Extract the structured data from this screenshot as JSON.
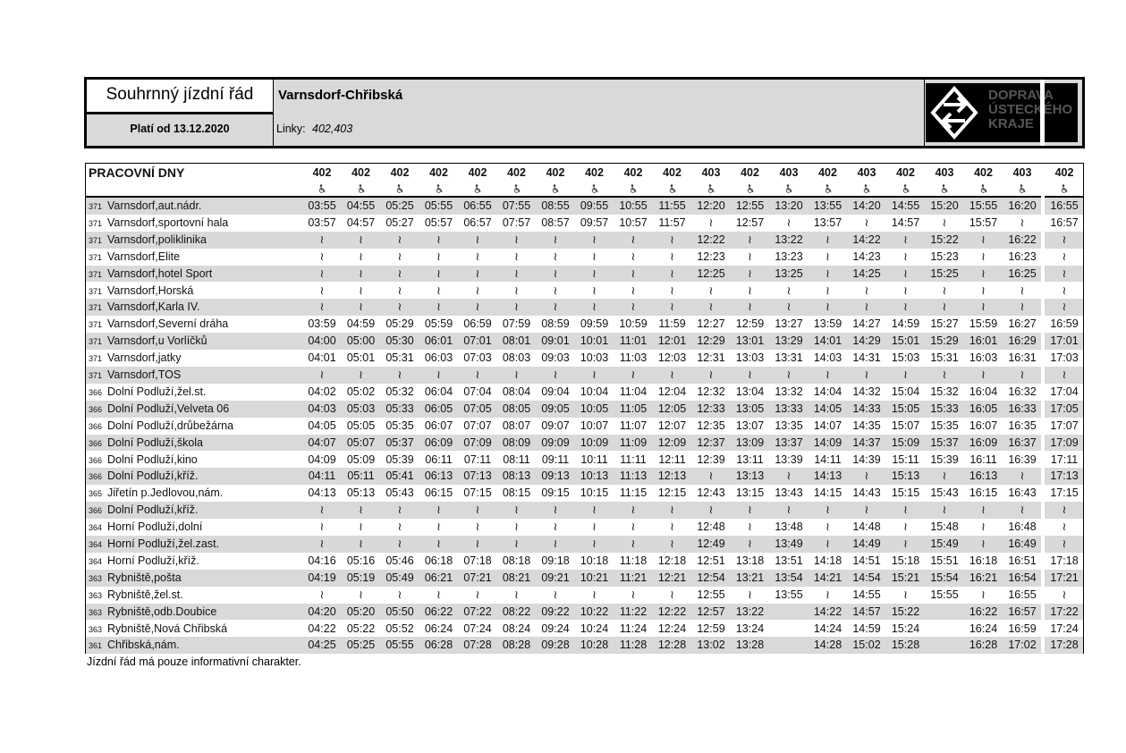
{
  "header": {
    "title": "Souhrnný jízdní řád",
    "valid_from": "Platí od 13.12.2020",
    "route": "Varnsdorf-Chřibská",
    "lines_label": "Linky:",
    "lines": "402,403",
    "logo": [
      "DOPRAVA",
      "ÚSTECKÉHO",
      "KRAJE"
    ]
  },
  "table": {
    "day_type": "PRACOVNÍ DNY",
    "trips": [
      "402",
      "402",
      "402",
      "402",
      "402",
      "402",
      "402",
      "402",
      "402",
      "402",
      "403",
      "402",
      "403",
      "402",
      "403",
      "402",
      "403",
      "402",
      "403",
      "402"
    ],
    "rows": [
      {
        "zone": "371",
        "stop": "Varnsdorf,aut.nádr.",
        "times": [
          "03:55",
          "04:55",
          "05:25",
          "05:55",
          "06:55",
          "07:55",
          "08:55",
          "09:55",
          "10:55",
          "11:55",
          "12:20",
          "12:55",
          "13:20",
          "13:55",
          "14:20",
          "14:55",
          "15:20",
          "15:55",
          "16:20",
          "16:55"
        ]
      },
      {
        "zone": "371",
        "stop": "Varnsdorf,sportovní hala",
        "times": [
          "03:57",
          "04:57",
          "05:27",
          "05:57",
          "06:57",
          "07:57",
          "08:57",
          "09:57",
          "10:57",
          "11:57",
          "≀",
          "12:57",
          "≀",
          "13:57",
          "≀",
          "14:57",
          "≀",
          "15:57",
          "≀",
          "16:57"
        ]
      },
      {
        "zone": "371",
        "stop": "Varnsdorf,poliklinika",
        "times": [
          "≀",
          "≀",
          "≀",
          "≀",
          "≀",
          "≀",
          "≀",
          "≀",
          "≀",
          "≀",
          "12:22",
          "≀",
          "13:22",
          "≀",
          "14:22",
          "≀",
          "15:22",
          "≀",
          "16:22",
          "≀"
        ]
      },
      {
        "zone": "371",
        "stop": "Varnsdorf,Elite",
        "times": [
          "≀",
          "≀",
          "≀",
          "≀",
          "≀",
          "≀",
          "≀",
          "≀",
          "≀",
          "≀",
          "12:23",
          "≀",
          "13:23",
          "≀",
          "14:23",
          "≀",
          "15:23",
          "≀",
          "16:23",
          "≀"
        ]
      },
      {
        "zone": "371",
        "stop": "Varnsdorf,hotel Sport",
        "times": [
          "≀",
          "≀",
          "≀",
          "≀",
          "≀",
          "≀",
          "≀",
          "≀",
          "≀",
          "≀",
          "12:25",
          "≀",
          "13:25",
          "≀",
          "14:25",
          "≀",
          "15:25",
          "≀",
          "16:25",
          "≀"
        ]
      },
      {
        "zone": "371",
        "stop": "Varnsdorf,Horská",
        "times": [
          "≀",
          "≀",
          "≀",
          "≀",
          "≀",
          "≀",
          "≀",
          "≀",
          "≀",
          "≀",
          "≀",
          "≀",
          "≀",
          "≀",
          "≀",
          "≀",
          "≀",
          "≀",
          "≀",
          "≀"
        ]
      },
      {
        "zone": "371",
        "stop": "Varnsdorf,Karla IV.",
        "times": [
          "≀",
          "≀",
          "≀",
          "≀",
          "≀",
          "≀",
          "≀",
          "≀",
          "≀",
          "≀",
          "≀",
          "≀",
          "≀",
          "≀",
          "≀",
          "≀",
          "≀",
          "≀",
          "≀",
          "≀"
        ]
      },
      {
        "zone": "371",
        "stop": "Varnsdorf,Severní dráha",
        "times": [
          "03:59",
          "04:59",
          "05:29",
          "05:59",
          "06:59",
          "07:59",
          "08:59",
          "09:59",
          "10:59",
          "11:59",
          "12:27",
          "12:59",
          "13:27",
          "13:59",
          "14:27",
          "14:59",
          "15:27",
          "15:59",
          "16:27",
          "16:59"
        ]
      },
      {
        "zone": "371",
        "stop": "Varnsdorf,u Vorlíčků",
        "times": [
          "04:00",
          "05:00",
          "05:30",
          "06:01",
          "07:01",
          "08:01",
          "09:01",
          "10:01",
          "11:01",
          "12:01",
          "12:29",
          "13:01",
          "13:29",
          "14:01",
          "14:29",
          "15:01",
          "15:29",
          "16:01",
          "16:29",
          "17:01"
        ]
      },
      {
        "zone": "371",
        "stop": "Varnsdorf,jatky",
        "times": [
          "04:01",
          "05:01",
          "05:31",
          "06:03",
          "07:03",
          "08:03",
          "09:03",
          "10:03",
          "11:03",
          "12:03",
          "12:31",
          "13:03",
          "13:31",
          "14:03",
          "14:31",
          "15:03",
          "15:31",
          "16:03",
          "16:31",
          "17:03"
        ]
      },
      {
        "zone": "371",
        "stop": "Varnsdorf,TOS",
        "times": [
          "≀",
          "≀",
          "≀",
          "≀",
          "≀",
          "≀",
          "≀",
          "≀",
          "≀",
          "≀",
          "≀",
          "≀",
          "≀",
          "≀",
          "≀",
          "≀",
          "≀",
          "≀",
          "≀",
          "≀"
        ]
      },
      {
        "zone": "366",
        "stop": "Dolní Podluží,žel.st.",
        "times": [
          "04:02",
          "05:02",
          "05:32",
          "06:04",
          "07:04",
          "08:04",
          "09:04",
          "10:04",
          "11:04",
          "12:04",
          "12:32",
          "13:04",
          "13:32",
          "14:04",
          "14:32",
          "15:04",
          "15:32",
          "16:04",
          "16:32",
          "17:04"
        ]
      },
      {
        "zone": "366",
        "stop": "Dolní Podluží,Velveta 06",
        "times": [
          "04:03",
          "05:03",
          "05:33",
          "06:05",
          "07:05",
          "08:05",
          "09:05",
          "10:05",
          "11:05",
          "12:05",
          "12:33",
          "13:05",
          "13:33",
          "14:05",
          "14:33",
          "15:05",
          "15:33",
          "16:05",
          "16:33",
          "17:05"
        ]
      },
      {
        "zone": "366",
        "stop": "Dolní Podluží,drůbežárna",
        "times": [
          "04:05",
          "05:05",
          "05:35",
          "06:07",
          "07:07",
          "08:07",
          "09:07",
          "10:07",
          "11:07",
          "12:07",
          "12:35",
          "13:07",
          "13:35",
          "14:07",
          "14:35",
          "15:07",
          "15:35",
          "16:07",
          "16:35",
          "17:07"
        ]
      },
      {
        "zone": "366",
        "stop": "Dolní Podluží,škola",
        "times": [
          "04:07",
          "05:07",
          "05:37",
          "06:09",
          "07:09",
          "08:09",
          "09:09",
          "10:09",
          "11:09",
          "12:09",
          "12:37",
          "13:09",
          "13:37",
          "14:09",
          "14:37",
          "15:09",
          "15:37",
          "16:09",
          "16:37",
          "17:09"
        ]
      },
      {
        "zone": "366",
        "stop": "Dolní Podluží,kino",
        "times": [
          "04:09",
          "05:09",
          "05:39",
          "06:11",
          "07:11",
          "08:11",
          "09:11",
          "10:11",
          "11:11",
          "12:11",
          "12:39",
          "13:11",
          "13:39",
          "14:11",
          "14:39",
          "15:11",
          "15:39",
          "16:11",
          "16:39",
          "17:11"
        ]
      },
      {
        "zone": "366",
        "stop": "Dolní Podluží,kříž.",
        "times": [
          "04:11",
          "05:11",
          "05:41",
          "06:13",
          "07:13",
          "08:13",
          "09:13",
          "10:13",
          "11:13",
          "12:13",
          "≀",
          "13:13",
          "≀",
          "14:13",
          "≀",
          "15:13",
          "≀",
          "16:13",
          "≀",
          "17:13"
        ]
      },
      {
        "zone": "365",
        "stop": "Jiřetín p.Jedlovou,nám.",
        "times": [
          "04:13",
          "05:13",
          "05:43",
          "06:15",
          "07:15",
          "08:15",
          "09:15",
          "10:15",
          "11:15",
          "12:15",
          "12:43",
          "13:15",
          "13:43",
          "14:15",
          "14:43",
          "15:15",
          "15:43",
          "16:15",
          "16:43",
          "17:15"
        ]
      },
      {
        "zone": "366",
        "stop": "Dolní Podluží,kříž.",
        "times": [
          "≀",
          "≀",
          "≀",
          "≀",
          "≀",
          "≀",
          "≀",
          "≀",
          "≀",
          "≀",
          "≀",
          "≀",
          "≀",
          "≀",
          "≀",
          "≀",
          "≀",
          "≀",
          "≀",
          "≀"
        ]
      },
      {
        "zone": "364",
        "stop": "Horní Podluží,dolní",
        "times": [
          "≀",
          "≀",
          "≀",
          "≀",
          "≀",
          "≀",
          "≀",
          "≀",
          "≀",
          "≀",
          "12:48",
          "≀",
          "13:48",
          "≀",
          "14:48",
          "≀",
          "15:48",
          "≀",
          "16:48",
          "≀"
        ]
      },
      {
        "zone": "364",
        "stop": "Horní Podluží,žel.zast.",
        "times": [
          "≀",
          "≀",
          "≀",
          "≀",
          "≀",
          "≀",
          "≀",
          "≀",
          "≀",
          "≀",
          "12:49",
          "≀",
          "13:49",
          "≀",
          "14:49",
          "≀",
          "15:49",
          "≀",
          "16:49",
          "≀"
        ]
      },
      {
        "zone": "364",
        "stop": "Horní Podluží,kříž.",
        "times": [
          "04:16",
          "05:16",
          "05:46",
          "06:18",
          "07:18",
          "08:18",
          "09:18",
          "10:18",
          "11:18",
          "12:18",
          "12:51",
          "13:18",
          "13:51",
          "14:18",
          "14:51",
          "15:18",
          "15:51",
          "16:18",
          "16:51",
          "17:18"
        ]
      },
      {
        "zone": "363",
        "stop": "Rybniště,pošta",
        "times": [
          "04:19",
          "05:19",
          "05:49",
          "06:21",
          "07:21",
          "08:21",
          "09:21",
          "10:21",
          "11:21",
          "12:21",
          "12:54",
          "13:21",
          "13:54",
          "14:21",
          "14:54",
          "15:21",
          "15:54",
          "16:21",
          "16:54",
          "17:21"
        ]
      },
      {
        "zone": "363",
        "stop": "Rybniště,žel.st.",
        "times": [
          "≀",
          "≀",
          "≀",
          "≀",
          "≀",
          "≀",
          "≀",
          "≀",
          "≀",
          "≀",
          "12:55",
          "≀",
          "13:55",
          "≀",
          "14:55",
          "≀",
          "15:55",
          "≀",
          "16:55",
          "≀"
        ]
      },
      {
        "zone": "363",
        "stop": "Rybniště,odb.Doubice",
        "times": [
          "04:20",
          "05:20",
          "05:50",
          "06:22",
          "07:22",
          "08:22",
          "09:22",
          "10:22",
          "11:22",
          "12:22",
          "12:57",
          "13:22",
          null,
          "14:22",
          "14:57",
          "15:22",
          null,
          "16:22",
          "16:57",
          "17:22"
        ]
      },
      {
        "zone": "363",
        "stop": "Rybniště,Nová Chřibská",
        "times": [
          "04:22",
          "05:22",
          "05:52",
          "06:24",
          "07:24",
          "08:24",
          "09:24",
          "10:24",
          "11:24",
          "12:24",
          "12:59",
          "13:24",
          null,
          "14:24",
          "14:59",
          "15:24",
          null,
          "16:24",
          "16:59",
          "17:24"
        ]
      },
      {
        "zone": "361",
        "stop": "Chřibská,nám.",
        "times": [
          "04:25",
          "05:25",
          "05:55",
          "06:28",
          "07:28",
          "08:28",
          "09:28",
          "10:28",
          "11:28",
          "12:28",
          "13:02",
          "13:28",
          null,
          "14:28",
          "15:02",
          "15:28",
          null,
          "16:28",
          "17:02",
          "17:28"
        ]
      }
    ]
  },
  "footer": "Jízdní řád má pouze informativní charakter."
}
